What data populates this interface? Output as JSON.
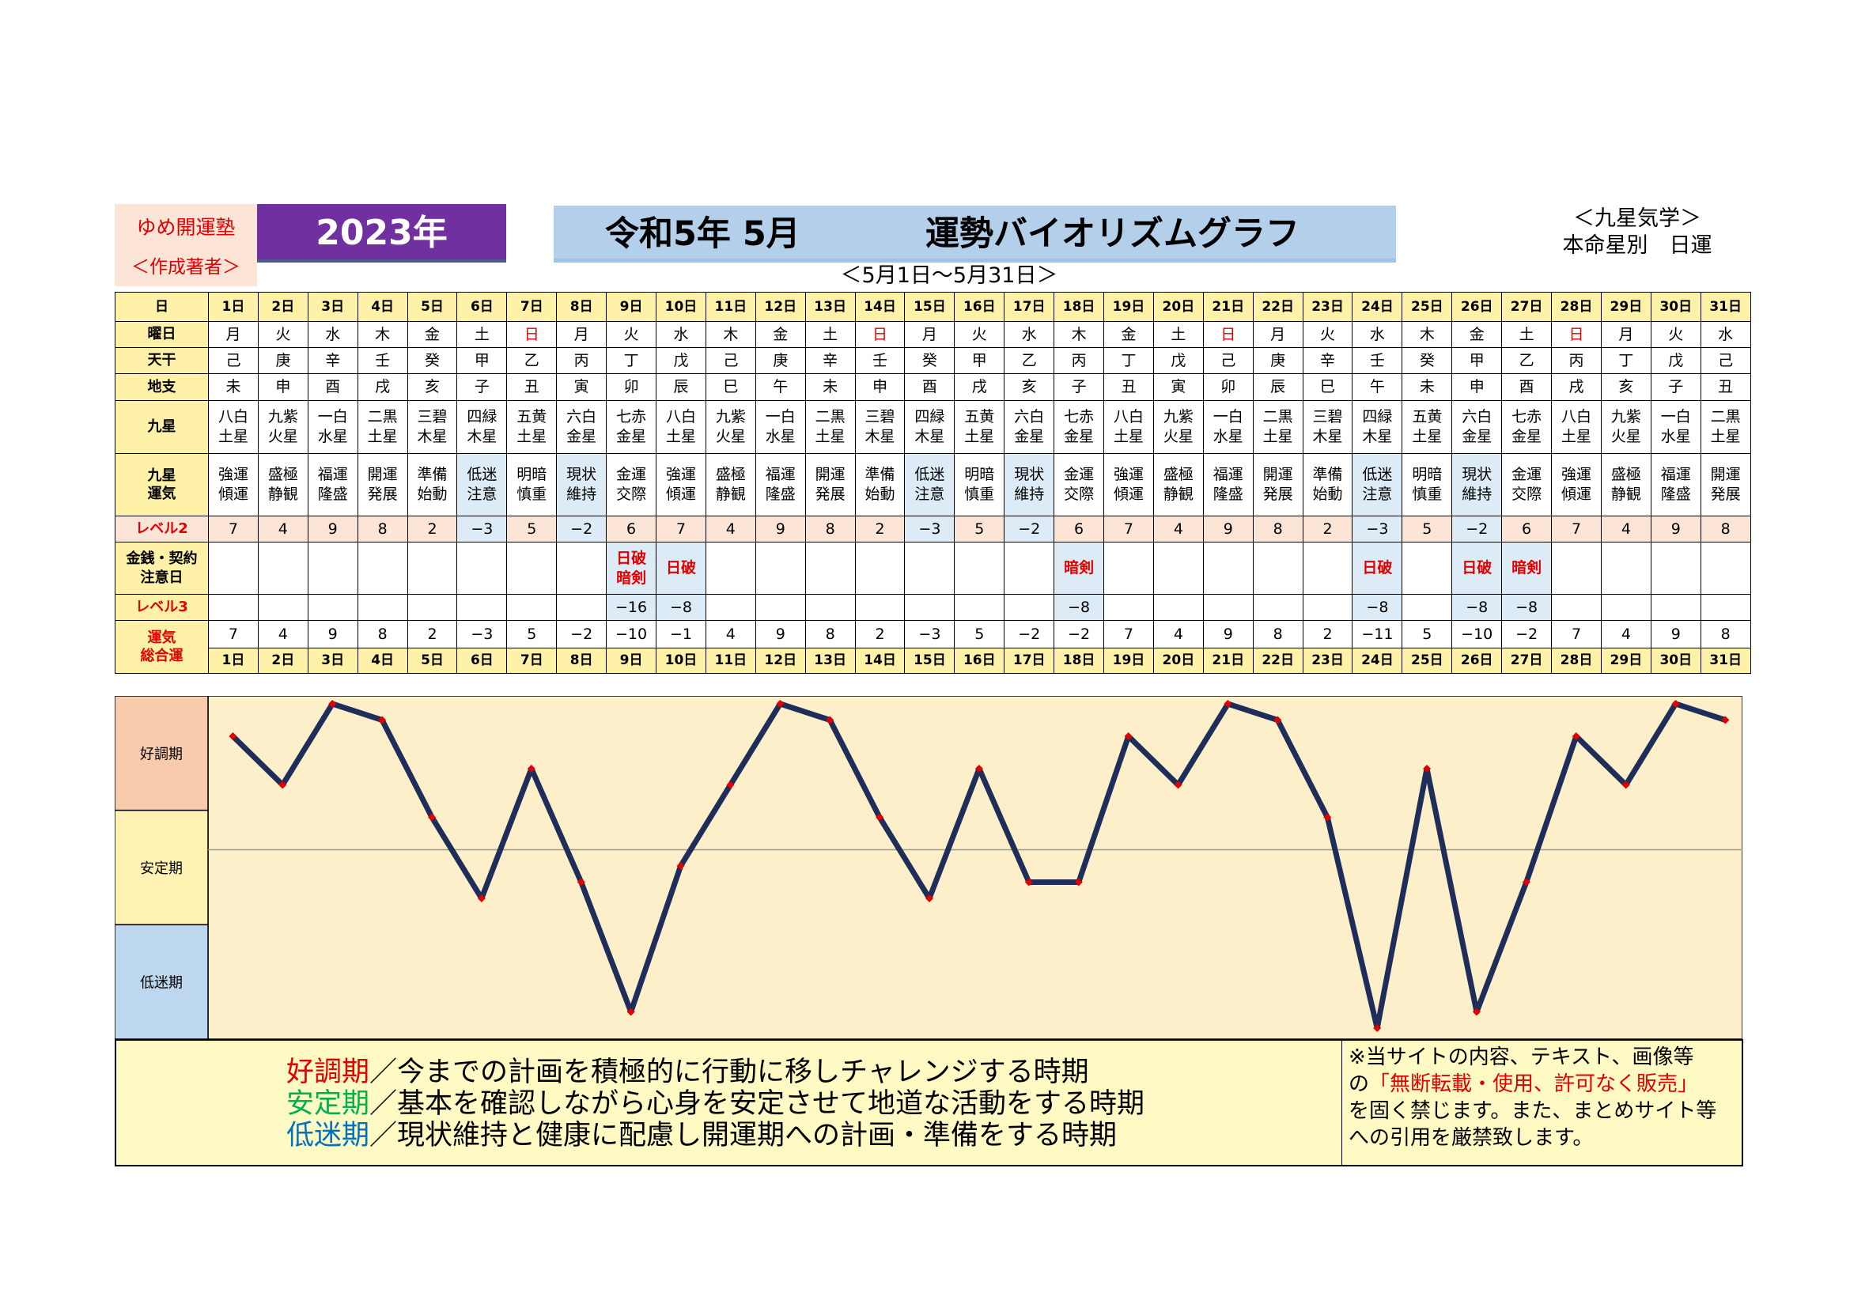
{
  "header": {
    "brand_name": "ゆめ開運塾",
    "brand_author": "＜作成著者＞",
    "year": "2023年",
    "title_month": "令和5年 5月",
    "title_main": "運勢バイオリズムグラフ",
    "period": "＜5月1日～5月31日＞",
    "school_1": "＜九星気学＞",
    "school_2": "本命星別　日運"
  },
  "row_labels": {
    "day": "日",
    "weekday": "曜日",
    "stem": "天干",
    "branch": "地支",
    "star": "九星",
    "star_luck": "九星\n運気",
    "level2": "レベル2",
    "money": "金銭・契約\n注意日",
    "level3": "レベル3",
    "total": "運気\n総合運"
  },
  "days": [
    "1日",
    "2日",
    "3日",
    "4日",
    "5日",
    "6日",
    "7日",
    "8日",
    "9日",
    "10日",
    "11日",
    "12日",
    "13日",
    "14日",
    "15日",
    "16日",
    "17日",
    "18日",
    "19日",
    "20日",
    "21日",
    "22日",
    "23日",
    "24日",
    "25日",
    "26日",
    "27日",
    "28日",
    "29日",
    "30日",
    "31日"
  ],
  "weekdays": [
    "月",
    "火",
    "水",
    "木",
    "金",
    "土",
    "日",
    "月",
    "火",
    "水",
    "木",
    "金",
    "土",
    "日",
    "月",
    "火",
    "水",
    "木",
    "金",
    "土",
    "日",
    "月",
    "火",
    "水",
    "木",
    "金",
    "土",
    "日",
    "月",
    "火",
    "水"
  ],
  "stems": [
    "己",
    "庚",
    "辛",
    "壬",
    "癸",
    "甲",
    "乙",
    "丙",
    "丁",
    "戊",
    "己",
    "庚",
    "辛",
    "壬",
    "癸",
    "甲",
    "乙",
    "丙",
    "丁",
    "戊",
    "己",
    "庚",
    "辛",
    "壬",
    "癸",
    "甲",
    "乙",
    "丙",
    "丁",
    "戊",
    "己"
  ],
  "branches": [
    "未",
    "申",
    "酉",
    "戌",
    "亥",
    "子",
    "丑",
    "寅",
    "卯",
    "辰",
    "巳",
    "午",
    "未",
    "申",
    "酉",
    "戌",
    "亥",
    "子",
    "丑",
    "寅",
    "卯",
    "辰",
    "巳",
    "午",
    "未",
    "申",
    "酉",
    "戌",
    "亥",
    "子",
    "丑"
  ],
  "stars": [
    "八白\n土星",
    "九紫\n火星",
    "一白\n水星",
    "二黒\n土星",
    "三碧\n木星",
    "四緑\n木星",
    "五黄\n土星",
    "六白\n金星",
    "七赤\n金星",
    "八白\n土星",
    "九紫\n火星",
    "一白\n水星",
    "二黒\n土星",
    "三碧\n木星",
    "四緑\n木星",
    "五黄\n土星",
    "六白\n金星",
    "七赤\n金星",
    "八白\n土星",
    "九紫\n火星",
    "一白\n水星",
    "二黒\n土星",
    "三碧\n木星",
    "四緑\n木星",
    "五黄\n土星",
    "六白\n金星",
    "七赤\n金星",
    "八白\n土星",
    "九紫\n火星",
    "一白\n水星",
    "二黒\n土星"
  ],
  "star_luck": [
    "強運\n傾運",
    "盛極\n静観",
    "福運\n隆盛",
    "開運\n発展",
    "準備\n始動",
    "低迷\n注意",
    "明暗\n慎重",
    "現状\n維持",
    "金運\n交際",
    "強運\n傾運",
    "盛極\n静観",
    "福運\n隆盛",
    "開運\n発展",
    "準備\n始動",
    "低迷\n注意",
    "明暗\n慎重",
    "現状\n維持",
    "金運\n交際",
    "強運\n傾運",
    "盛極\n静観",
    "福運\n隆盛",
    "開運\n発展",
    "準備\n始動",
    "低迷\n注意",
    "明暗\n慎重",
    "現状\n維持",
    "金運\n交際",
    "強運\n傾運",
    "盛極\n静観",
    "福運\n隆盛",
    "開運\n発展"
  ],
  "level2": [
    "7",
    "4",
    "9",
    "8",
    "2",
    "−3",
    "5",
    "−2",
    "6",
    "7",
    "4",
    "9",
    "8",
    "2",
    "−3",
    "5",
    "−2",
    "6",
    "7",
    "4",
    "9",
    "8",
    "2",
    "−3",
    "5",
    "−2",
    "6",
    "7",
    "4",
    "9",
    "8"
  ],
  "money": [
    "",
    "",
    "",
    "",
    "",
    "",
    "",
    "",
    "日破\n暗剣",
    "日破",
    "",
    "",
    "",
    "",
    "",
    "",
    "",
    "暗剣",
    "",
    "",
    "",
    "",
    "",
    "日破",
    "",
    "日破",
    "暗剣",
    "",
    "",
    "",
    ""
  ],
  "level3": [
    "",
    "",
    "",
    "",
    "",
    "",
    "",
    "",
    "−16",
    "−8",
    "",
    "",
    "",
    "",
    "",
    "",
    "",
    "−8",
    "",
    "",
    "",
    "",
    "",
    "−8",
    "",
    "−8",
    "−8",
    "",
    "",
    "",
    ""
  ],
  "total": [
    "7",
    "4",
    "9",
    "8",
    "2",
    "−3",
    "5",
    "−2",
    "−10",
    "−1",
    "4",
    "9",
    "8",
    "2",
    "−3",
    "5",
    "−2",
    "−2",
    "7",
    "4",
    "9",
    "8",
    "2",
    "−11",
    "5",
    "−10",
    "−2",
    "7",
    "4",
    "9",
    "8"
  ],
  "colors": {
    "label_bg": "#fff2a8",
    "level2_bg": "#fce4d6",
    "low_bg": "#ddebf7",
    "sunday": "#e00000",
    "line": "#1f2d5a",
    "marker": "#e00000",
    "chart_bg": "#fdefc9",
    "band_good": "#f8cbad",
    "band_stable": "#fff2b3",
    "band_low": "#bdd7ee"
  },
  "chart_data": {
    "type": "line",
    "categories": [
      "1日",
      "2日",
      "3日",
      "4日",
      "5日",
      "6日",
      "7日",
      "8日",
      "9日",
      "10日",
      "11日",
      "12日",
      "13日",
      "14日",
      "15日",
      "16日",
      "17日",
      "18日",
      "19日",
      "20日",
      "21日",
      "22日",
      "23日",
      "24日",
      "25日",
      "26日",
      "27日",
      "28日",
      "29日",
      "30日",
      "31日"
    ],
    "series": [
      {
        "name": "",
        "values": [
          7,
          4,
          9,
          8,
          2,
          -3,
          5,
          -2,
          -10,
          -1,
          4,
          9,
          8,
          2,
          -3,
          5,
          -2,
          -2,
          7,
          4,
          9,
          8,
          2,
          -11,
          5,
          -10,
          -2,
          7,
          4,
          9,
          8
        ]
      }
    ],
    "ylim": [
      -11,
      9
    ],
    "reference_line": 0,
    "bands": [
      "好調期",
      "安定期",
      "低迷期"
    ],
    "grid": false
  },
  "legend": {
    "good_term": "好調期",
    "good_text": "／今までの計画を積極的に行動に移しチャレンジする時期",
    "stable_term": "安定期",
    "stable_text": "／基本を確認しながら心身を安定させて地道な活動をする時期",
    "low_term": "低迷期",
    "low_text": "／現状維持と健康に配慮し開運期への計画・準備をする時期"
  },
  "notice": {
    "line1": "※当サイトの内容、テキスト、画像等",
    "line2_a": "の",
    "line2_b": "「無断転載・使用、許可なく販売」",
    "line3": "を固く禁じます。また、まとめサイト等",
    "line4": "への引用を厳禁致します。"
  }
}
